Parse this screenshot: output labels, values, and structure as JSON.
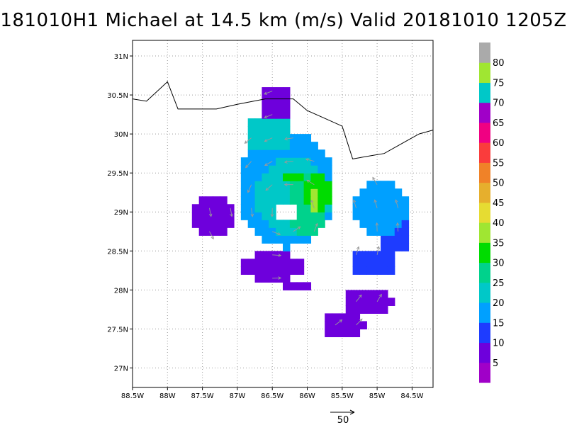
{
  "title": "181010H1 Michael at 14.5 km (m/s) Valid 20181010  1205Z",
  "chart_data": {
    "type": "heatmap",
    "title": "181010H1 Michael at 14.5 km (m/s) Valid 20181010  1205Z",
    "x_range": [
      -88.5,
      -84.2
    ],
    "y_range": [
      26.75,
      31.2
    ],
    "x_ticks": [
      {
        "value": -88.5,
        "label": "88.5W"
      },
      {
        "value": -88,
        "label": "88W"
      },
      {
        "value": -87.5,
        "label": "87.5W"
      },
      {
        "value": -87,
        "label": "87W"
      },
      {
        "value": -86.5,
        "label": "86.5W"
      },
      {
        "value": -86,
        "label": "86W"
      },
      {
        "value": -85.5,
        "label": "85.5W"
      },
      {
        "value": -85,
        "label": "85W"
      },
      {
        "value": -84.5,
        "label": "84.5W"
      }
    ],
    "y_ticks": [
      {
        "value": 31,
        "label": "31N"
      },
      {
        "value": 30.5,
        "label": "30.5N"
      },
      {
        "value": 30,
        "label": "30N"
      },
      {
        "value": 29.5,
        "label": "29.5N"
      },
      {
        "value": 29,
        "label": "29N"
      },
      {
        "value": 28.5,
        "label": "28.5N"
      },
      {
        "value": 28,
        "label": "28N"
      },
      {
        "value": 27.5,
        "label": "27.5N"
      },
      {
        "value": 27,
        "label": "27N"
      }
    ],
    "grid": true,
    "colorbar": {
      "labels": [
        "5",
        "10",
        "15",
        "20",
        "25",
        "30",
        "35",
        "40",
        "45",
        "50",
        "55",
        "60",
        "65",
        "70",
        "75",
        "80"
      ],
      "colors": [
        "#a000c8",
        "#6e00dc",
        "#1e3cff",
        "#00a0ff",
        "#00c8c8",
        "#00d28c",
        "#00dc00",
        "#a0e632",
        "#e6dc32",
        "#e6af2d",
        "#f08228",
        "#fa3c3c",
        "#f00082",
        "#a000c8",
        "#00c8c8",
        "#a0e632",
        "#aaaaaa"
      ]
    },
    "vector_reference": {
      "value": "50"
    },
    "coastline": [
      [
        -88.5,
        30.45
      ],
      [
        -88.3,
        30.42
      ],
      [
        -88.0,
        30.67
      ],
      [
        -87.85,
        30.32
      ],
      [
        -87.5,
        30.32
      ],
      [
        -87.3,
        30.32
      ],
      [
        -87.0,
        30.38
      ],
      [
        -86.6,
        30.45
      ],
      [
        -86.2,
        30.45
      ],
      [
        -86.0,
        30.3
      ],
      [
        -85.75,
        30.2
      ],
      [
        -85.5,
        30.1
      ],
      [
        -85.35,
        29.68
      ],
      [
        -85.1,
        29.72
      ],
      [
        -84.9,
        29.75
      ],
      [
        -84.6,
        29.9
      ],
      [
        -84.4,
        30.0
      ],
      [
        -84.2,
        30.05
      ]
    ],
    "wind_blobs": [
      {
        "lon": -87.35,
        "lat": 28.95,
        "rlon": 0.28,
        "rlat": 0.3,
        "v": 7
      },
      {
        "lon": -86.45,
        "lat": 30.35,
        "rlon": 0.22,
        "rlat": 0.28,
        "v": 8
      },
      {
        "lon": -86.5,
        "lat": 28.3,
        "rlon": 0.45,
        "rlat": 0.2,
        "v": 9
      },
      {
        "lon": -86.15,
        "lat": 28.05,
        "rlon": 0.2,
        "rlat": 0.1,
        "v": 9
      },
      {
        "lon": -85.15,
        "lat": 27.85,
        "rlon": 0.35,
        "rlat": 0.18,
        "v": 8
      },
      {
        "lon": -85.5,
        "lat": 27.55,
        "rlon": 0.3,
        "rlat": 0.14,
        "v": 9
      },
      {
        "lon": -84.75,
        "lat": 28.7,
        "rlon": 0.22,
        "rlat": 0.25,
        "v": 12
      },
      {
        "lon": -85.05,
        "lat": 28.35,
        "rlon": 0.3,
        "rlat": 0.2,
        "v": 13
      },
      {
        "lon": -86.3,
        "lat": 29.3,
        "rlon": 0.7,
        "rlat": 0.75,
        "v": 18
      },
      {
        "lon": -86.55,
        "lat": 30.0,
        "rlon": 0.35,
        "rlat": 0.25,
        "v": 20
      },
      {
        "lon": -84.95,
        "lat": 29.05,
        "rlon": 0.4,
        "rlat": 0.35,
        "v": 19
      },
      {
        "lon": -86.2,
        "lat": 29.2,
        "rlon": 0.55,
        "rlat": 0.5,
        "v": 24
      },
      {
        "lon": -86.0,
        "lat": 29.1,
        "rlon": 0.3,
        "rlat": 0.4,
        "v": 28
      },
      {
        "lon": -85.85,
        "lat": 29.25,
        "rlon": 0.18,
        "rlat": 0.28,
        "v": 33
      },
      {
        "lon": -86.25,
        "lat": 29.45,
        "rlon": 0.15,
        "rlat": 0.1,
        "v": 33
      },
      {
        "lon": -85.9,
        "lat": 29.2,
        "rlon": 0.1,
        "rlat": 0.15,
        "v": 38
      }
    ],
    "no_data": [
      {
        "lon": -86.3,
        "lat": 29.0,
        "rlon": 0.14,
        "rlat": 0.1
      },
      {
        "lon": -85.4,
        "lat": 28.65,
        "rlon": 0.25,
        "rlat": 0.18
      }
    ],
    "storm_center": {
      "lon": -86.3,
      "lat": 29.0
    }
  }
}
